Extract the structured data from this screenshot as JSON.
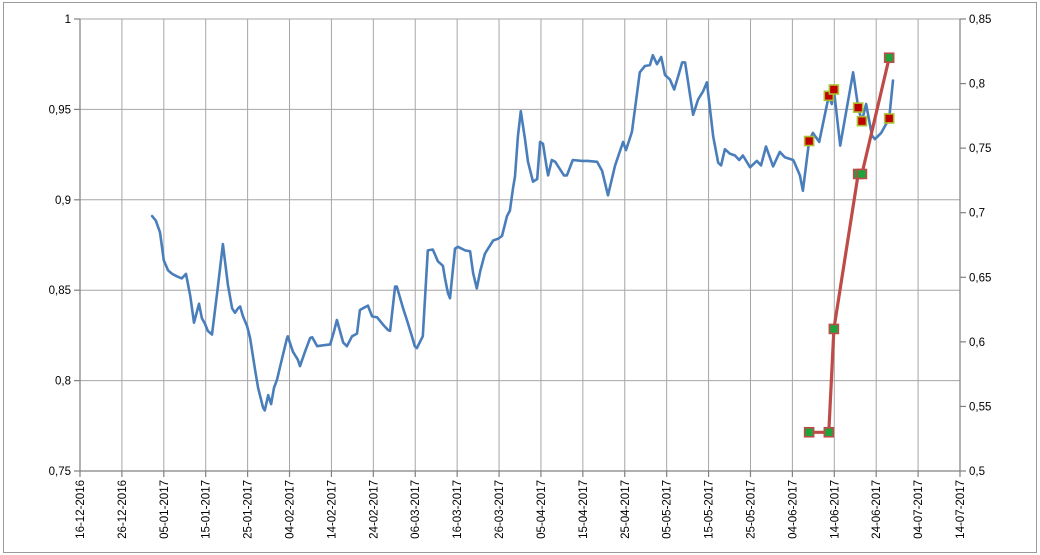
{
  "chart_data": {
    "type": "line",
    "title": "",
    "legend": "none",
    "grid": true,
    "border_color": "#9a9a9a",
    "gridline_color": "#a6a6a6",
    "axis_color": "#808080",
    "x_axis": {
      "tick_labels": [
        "16-12-2016",
        "26-12-2016",
        "05-01-2017",
        "15-01-2017",
        "25-01-2017",
        "04-02-2017",
        "14-02-2017",
        "24-02-2017",
        "06-03-2017",
        "16-03-2017",
        "26-03-2017",
        "05-04-2017",
        "15-04-2017",
        "25-04-2017",
        "05-05-2017",
        "15-05-2017",
        "25-05-2017",
        "04-06-2017",
        "14-06-2017",
        "24-06-2017",
        "04-07-2017",
        "14-07-2017"
      ],
      "days_per_tick": 10,
      "total_days": 210
    },
    "y_axis_left": {
      "min": 0.75,
      "max": 1.0,
      "step": 0.05,
      "tick_labels": [
        "1",
        "0,95",
        "0,9",
        "0,85",
        "0,8",
        "0,75"
      ]
    },
    "y_axis_right": {
      "min": 0.5,
      "max": 0.85,
      "step": 0.05,
      "tick_labels": [
        "0,85",
        "0,8",
        "0,75",
        "0,7",
        "0,65",
        "0,6",
        "0,55",
        "0,5"
      ]
    },
    "series": [
      {
        "name": "daily-rate-line",
        "axis": "left",
        "type": "line",
        "color": "#4A7EBB",
        "width": 2.6,
        "points": [
          [
            17.2,
            0.891
          ],
          [
            18.1,
            0.8885
          ],
          [
            19.1,
            0.882
          ],
          [
            20,
            0.8665
          ],
          [
            21,
            0.861
          ],
          [
            22,
            0.859
          ],
          [
            23.1,
            0.8577
          ],
          [
            24.3,
            0.8565
          ],
          [
            25.3,
            0.859
          ],
          [
            26.3,
            0.847
          ],
          [
            27.2,
            0.832
          ],
          [
            28.4,
            0.8425
          ],
          [
            29.1,
            0.8345
          ],
          [
            29.8,
            0.8315
          ],
          [
            30.5,
            0.8275
          ],
          [
            31.5,
            0.8255
          ],
          [
            32.9,
            0.852
          ],
          [
            34.1,
            0.8755
          ],
          [
            35.3,
            0.853
          ],
          [
            36.3,
            0.84
          ],
          [
            37,
            0.8375
          ],
          [
            37.7,
            0.84
          ],
          [
            38.2,
            0.841
          ],
          [
            38.9,
            0.8355
          ],
          [
            39.9,
            0.83
          ],
          [
            40.6,
            0.8235
          ],
          [
            41.8,
            0.8055
          ],
          [
            42.5,
            0.796
          ],
          [
            43.7,
            0.785
          ],
          [
            44.1,
            0.7835
          ],
          [
            44.9,
            0.792
          ],
          [
            45.6,
            0.787
          ],
          [
            46.3,
            0.796
          ],
          [
            47,
            0.8005
          ],
          [
            48,
            0.81
          ],
          [
            49.4,
            0.8235
          ],
          [
            49.6,
            0.8245
          ],
          [
            50.8,
            0.816
          ],
          [
            52,
            0.8115
          ],
          [
            52.5,
            0.808
          ],
          [
            53.7,
            0.816
          ],
          [
            54.9,
            0.8235
          ],
          [
            55.4,
            0.824
          ],
          [
            56.6,
            0.819
          ],
          [
            58,
            0.8195
          ],
          [
            59.7,
            0.82
          ],
          [
            60.6,
            0.827
          ],
          [
            61.3,
            0.8335
          ],
          [
            62.8,
            0.821
          ],
          [
            63.7,
            0.819
          ],
          [
            64.9,
            0.8245
          ],
          [
            66.1,
            0.826
          ],
          [
            66.8,
            0.839
          ],
          [
            67.5,
            0.84
          ],
          [
            68.7,
            0.8415
          ],
          [
            69.7,
            0.8355
          ],
          [
            70.9,
            0.835
          ],
          [
            72.3,
            0.831
          ],
          [
            73.5,
            0.828
          ],
          [
            74,
            0.8275
          ],
          [
            75.2,
            0.852
          ],
          [
            75.6,
            0.852
          ],
          [
            77.1,
            0.84
          ],
          [
            78,
            0.8335
          ],
          [
            79.2,
            0.8245
          ],
          [
            79.9,
            0.819
          ],
          [
            80.4,
            0.818
          ],
          [
            81.6,
            0.8235
          ],
          [
            81.8,
            0.8245
          ],
          [
            83,
            0.872
          ],
          [
            84.2,
            0.8725
          ],
          [
            85.4,
            0.866
          ],
          [
            86.6,
            0.8635
          ],
          [
            87.1,
            0.8565
          ],
          [
            87.8,
            0.8485
          ],
          [
            88.3,
            0.8455
          ],
          [
            89.5,
            0.873
          ],
          [
            90.2,
            0.874
          ],
          [
            91.9,
            0.872
          ],
          [
            93.1,
            0.8715
          ],
          [
            93.8,
            0.8595
          ],
          [
            94.7,
            0.851
          ],
          [
            95.5,
            0.8605
          ],
          [
            96.6,
            0.87
          ],
          [
            97.1,
            0.872
          ],
          [
            98.6,
            0.8775
          ],
          [
            99.8,
            0.8785
          ],
          [
            100.7,
            0.88
          ],
          [
            101.9,
            0.891
          ],
          [
            102.6,
            0.894
          ],
          [
            103.3,
            0.906
          ],
          [
            103.8,
            0.913
          ],
          [
            104.5,
            0.935
          ],
          [
            105.2,
            0.949
          ],
          [
            106.2,
            0.9335
          ],
          [
            106.9,
            0.921
          ],
          [
            108.1,
            0.91
          ],
          [
            109.1,
            0.9115
          ],
          [
            109.8,
            0.932
          ],
          [
            110.5,
            0.931
          ],
          [
            111.4,
            0.9175
          ],
          [
            111.7,
            0.9135
          ],
          [
            112.6,
            0.922
          ],
          [
            113.4,
            0.921
          ],
          [
            115.5,
            0.9135
          ],
          [
            116.2,
            0.9135
          ],
          [
            117.6,
            0.922
          ],
          [
            119.8,
            0.9215
          ],
          [
            121.2,
            0.9215
          ],
          [
            123.4,
            0.921
          ],
          [
            124.6,
            0.916
          ],
          [
            126,
            0.9025
          ],
          [
            127.7,
            0.919
          ],
          [
            129.6,
            0.932
          ],
          [
            130.3,
            0.9275
          ],
          [
            131.7,
            0.9375
          ],
          [
            132.7,
            0.955
          ],
          [
            133.6,
            0.9705
          ],
          [
            134.8,
            0.974
          ],
          [
            136,
            0.9745
          ],
          [
            136.7,
            0.98
          ],
          [
            137.7,
            0.975
          ],
          [
            138.7,
            0.979
          ],
          [
            139.6,
            0.969
          ],
          [
            140.8,
            0.9665
          ],
          [
            141.8,
            0.961
          ],
          [
            142.7,
            0.968
          ],
          [
            143.7,
            0.976
          ],
          [
            144.4,
            0.976
          ],
          [
            145.8,
            0.9545
          ],
          [
            146.3,
            0.947
          ],
          [
            147.5,
            0.9555
          ],
          [
            148.7,
            0.96
          ],
          [
            149.6,
            0.965
          ],
          [
            151.1,
            0.935
          ],
          [
            152.3,
            0.9205
          ],
          [
            153,
            0.919
          ],
          [
            153.9,
            0.928
          ],
          [
            155.1,
            0.9255
          ],
          [
            156.3,
            0.9245
          ],
          [
            157.3,
            0.922
          ],
          [
            158.2,
            0.9245
          ],
          [
            159.9,
            0.918
          ],
          [
            161.5,
            0.9215
          ],
          [
            162.5,
            0.919
          ],
          [
            163.7,
            0.9295
          ],
          [
            165.4,
            0.9185
          ],
          [
            167,
            0.9265
          ],
          [
            168.2,
            0.9235
          ],
          [
            170.2,
            0.922
          ],
          [
            170.6,
            0.92
          ],
          [
            171.8,
            0.9135
          ],
          [
            172.5,
            0.905
          ],
          [
            174,
            0.9325
          ],
          [
            174.9,
            0.937
          ],
          [
            176.4,
            0.932
          ],
          [
            178.7,
            0.9575
          ],
          [
            179.4,
            0.953
          ],
          [
            179.9,
            0.961
          ],
          [
            181.4,
            0.93
          ],
          [
            184.5,
            0.9705
          ],
          [
            185.7,
            0.951
          ],
          [
            186.6,
            0.9435
          ],
          [
            187.6,
            0.953
          ],
          [
            189,
            0.9355
          ],
          [
            189.7,
            0.9335
          ],
          [
            191.2,
            0.937
          ],
          [
            193.1,
            0.945
          ],
          [
            194,
            0.966
          ]
        ]
      },
      {
        "name": "forecast-line-green-squares",
        "axis": "right",
        "type": "line+marker",
        "color": "#BE4B48",
        "width": 3.2,
        "marker": {
          "shape": "square",
          "size": 9,
          "fill": "#1FA43C",
          "stroke": "#BE4B48",
          "stroke_width": 1.6
        },
        "points": [
          [
            174,
            0.53
          ],
          [
            178.7,
            0.53
          ],
          [
            179.9,
            0.61
          ],
          [
            185.7,
            0.73
          ],
          [
            186.6,
            0.73
          ],
          [
            193.1,
            0.82
          ]
        ]
      },
      {
        "name": "marked-days-red-squares",
        "axis": "left",
        "type": "scatter",
        "color": "#C00000",
        "marker": {
          "shape": "square",
          "size": 9,
          "fill": "#C00000",
          "stroke": "#ABC032",
          "stroke_width": 1.6
        },
        "points": [
          [
            174,
            0.9325
          ],
          [
            178.7,
            0.9575
          ],
          [
            179.9,
            0.961
          ],
          [
            185.7,
            0.951
          ],
          [
            186.6,
            0.9435
          ],
          [
            193.1,
            0.945
          ]
        ]
      }
    ]
  }
}
